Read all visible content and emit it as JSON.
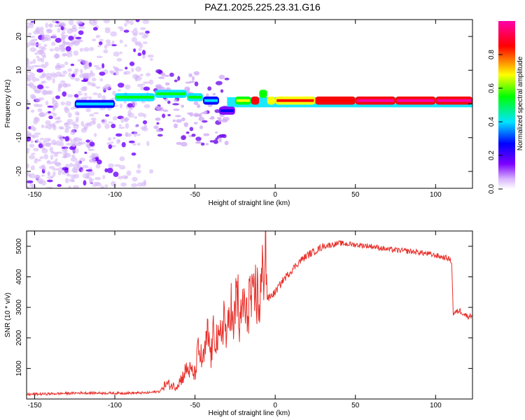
{
  "title": "PAZ1.2025.225.23.31.G16",
  "chart_data": [
    {
      "type": "heatmap",
      "xlabel": "Height of straight line (km)",
      "ylabel": "Frequency (Hz)",
      "xlim": [
        -155,
        123
      ],
      "ylim": [
        -25,
        25
      ],
      "x_ticks": [
        -150,
        -100,
        -50,
        0,
        50,
        100
      ],
      "y_ticks": [
        -20,
        -10,
        0,
        10,
        20
      ],
      "colorbar": {
        "label": "Normalized spectral amplitude",
        "range": [
          0,
          1
        ],
        "ticks": [
          0.0,
          0.2,
          0.4,
          0.6,
          0.8
        ],
        "colormap": [
          "#ffffff",
          "#d8b4fe",
          "#7c00ff",
          "#0000ff",
          "#00e5ff",
          "#00ff00",
          "#ffff00",
          "#ff0000",
          "#ff00aa"
        ]
      },
      "ridge": {
        "description_points_x": [
          -125,
          -100,
          -75,
          -55,
          -45,
          -35,
          -25,
          -15,
          -10,
          -5,
          0,
          25,
          50,
          75,
          100,
          123
        ],
        "frequency_hz": [
          0,
          2,
          3,
          2,
          1,
          -2,
          1,
          1,
          3,
          1,
          1,
          1,
          1,
          1,
          1,
          1
        ],
        "amplitude": [
          0.35,
          0.45,
          0.5,
          0.45,
          0.3,
          0.2,
          0.6,
          0.85,
          0.55,
          0.7,
          0.75,
          0.85,
          0.9,
          0.95,
          0.95,
          0.8
        ]
      }
    },
    {
      "type": "line",
      "xlabel": "Height of straight line (km)",
      "ylabel": "SNR (10 * v/v)",
      "xlim": [
        -155,
        123
      ],
      "ylim": [
        0,
        5500
      ],
      "x_ticks": [
        -150,
        -100,
        -50,
        0,
        50,
        100
      ],
      "y_ticks": [
        1000,
        2000,
        3000,
        4000,
        5000
      ],
      "series": [
        {
          "color": "#e8302a",
          "x": [
            -155,
            -140,
            -120,
            -100,
            -80,
            -72,
            -68,
            -62,
            -58,
            -55,
            -50,
            -48,
            -45,
            -42,
            -40,
            -38,
            -35,
            -32,
            -30,
            -28,
            -26,
            -24,
            -22,
            -20,
            -18,
            -16,
            -14,
            -12,
            -10,
            -8,
            -6,
            -5,
            -4,
            -2,
            0,
            5,
            10,
            15,
            20,
            25,
            30,
            35,
            40,
            50,
            60,
            70,
            80,
            90,
            100,
            108,
            110,
            111,
            115,
            120,
            123
          ],
          "y": [
            150,
            170,
            200,
            190,
            200,
            250,
            500,
            400,
            700,
            1000,
            800,
            1600,
            1200,
            2100,
            1400,
            2300,
            1700,
            2800,
            1800,
            3400,
            2000,
            3800,
            2200,
            3300,
            2500,
            3500,
            2900,
            3600,
            3100,
            3900,
            5400,
            3300,
            3300,
            3400,
            3500,
            3900,
            4200,
            4500,
            4700,
            4850,
            5000,
            5050,
            5100,
            5050,
            5000,
            4900,
            4850,
            4800,
            4700,
            4600,
            4500,
            2800,
            2900,
            2700,
            2750
          ]
        }
      ]
    }
  ]
}
